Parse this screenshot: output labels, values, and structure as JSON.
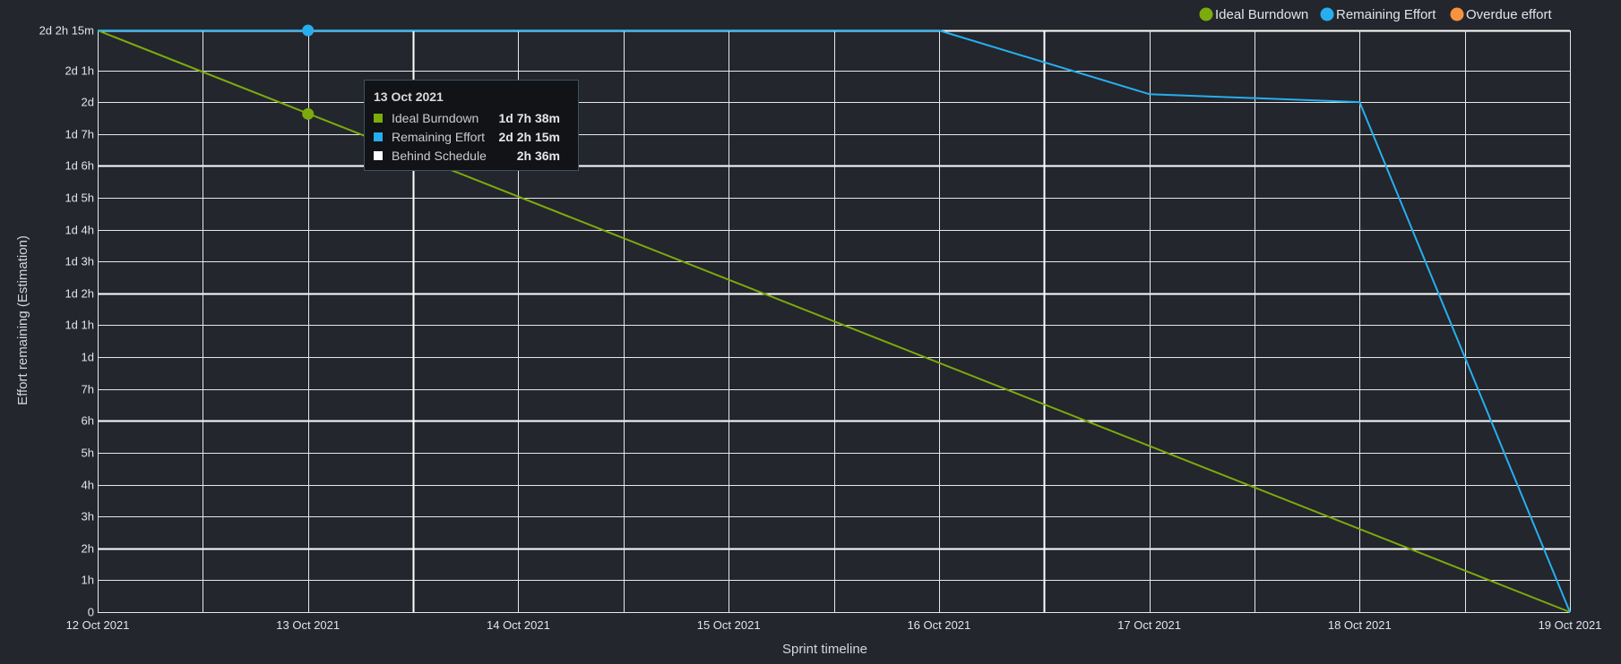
{
  "chart_data": {
    "type": "line",
    "xlabel": "Sprint timeline",
    "ylabel": "Effort remaining (Estimation)",
    "categories": [
      "12 Oct 2021",
      "13 Oct 2021",
      "14 Oct 2021",
      "15 Oct 2021",
      "16 Oct 2021",
      "17 Oct 2021",
      "18 Oct 2021",
      "19 Oct 2021"
    ],
    "y_unit": "hours",
    "ylim": [
      0,
      18.25
    ],
    "y_ticks": [
      {
        "label": "0",
        "value": 0
      },
      {
        "label": "1h",
        "value": 1
      },
      {
        "label": "2h",
        "value": 2
      },
      {
        "label": "3h",
        "value": 3
      },
      {
        "label": "4h",
        "value": 4
      },
      {
        "label": "5h",
        "value": 5
      },
      {
        "label": "6h",
        "value": 6
      },
      {
        "label": "7h",
        "value": 7
      },
      {
        "label": "1d",
        "value": 8
      },
      {
        "label": "1d 1h",
        "value": 9
      },
      {
        "label": "1d 2h",
        "value": 10
      },
      {
        "label": "1d 3h",
        "value": 11
      },
      {
        "label": "1d 4h",
        "value": 12
      },
      {
        "label": "1d 5h",
        "value": 13
      },
      {
        "label": "1d 6h",
        "value": 14
      },
      {
        "label": "1d 7h",
        "value": 15
      },
      {
        "label": "2d",
        "value": 16
      },
      {
        "label": "2d 1h",
        "value": 17
      },
      {
        "label": "2d 2h 15m",
        "value": 18.25
      }
    ],
    "series": [
      {
        "name": "Ideal Burndown",
        "color": "#7cab0c",
        "x": [
          0,
          7
        ],
        "values": [
          18.25,
          0
        ]
      },
      {
        "name": "Remaining Effort",
        "color": "#27aeef",
        "x": [
          0,
          1,
          2,
          3,
          4,
          5,
          6,
          7
        ],
        "values": [
          18.25,
          18.25,
          18.25,
          18.25,
          18.25,
          16.25,
          16.0,
          0
        ]
      },
      {
        "name": "Overdue effort",
        "color": "#f7933e",
        "x": [],
        "values": []
      }
    ],
    "highlight": [
      {
        "series": "Ideal Burndown",
        "x": 1,
        "value": 15.63
      },
      {
        "series": "Remaining Effort",
        "x": 1,
        "value": 18.25
      }
    ],
    "legend": "top-right",
    "grid": true
  },
  "tooltip": {
    "title": "13 Oct 2021",
    "rows": [
      {
        "name": "Ideal Burndown",
        "value": "1d 7h 38m",
        "color": "#7cab0c"
      },
      {
        "name": "Remaining Effort",
        "value": "2d 2h 15m",
        "color": "#27aeef"
      },
      {
        "name": "Behind Schedule",
        "value": "2h 36m",
        "color": "#ffffff"
      }
    ]
  }
}
